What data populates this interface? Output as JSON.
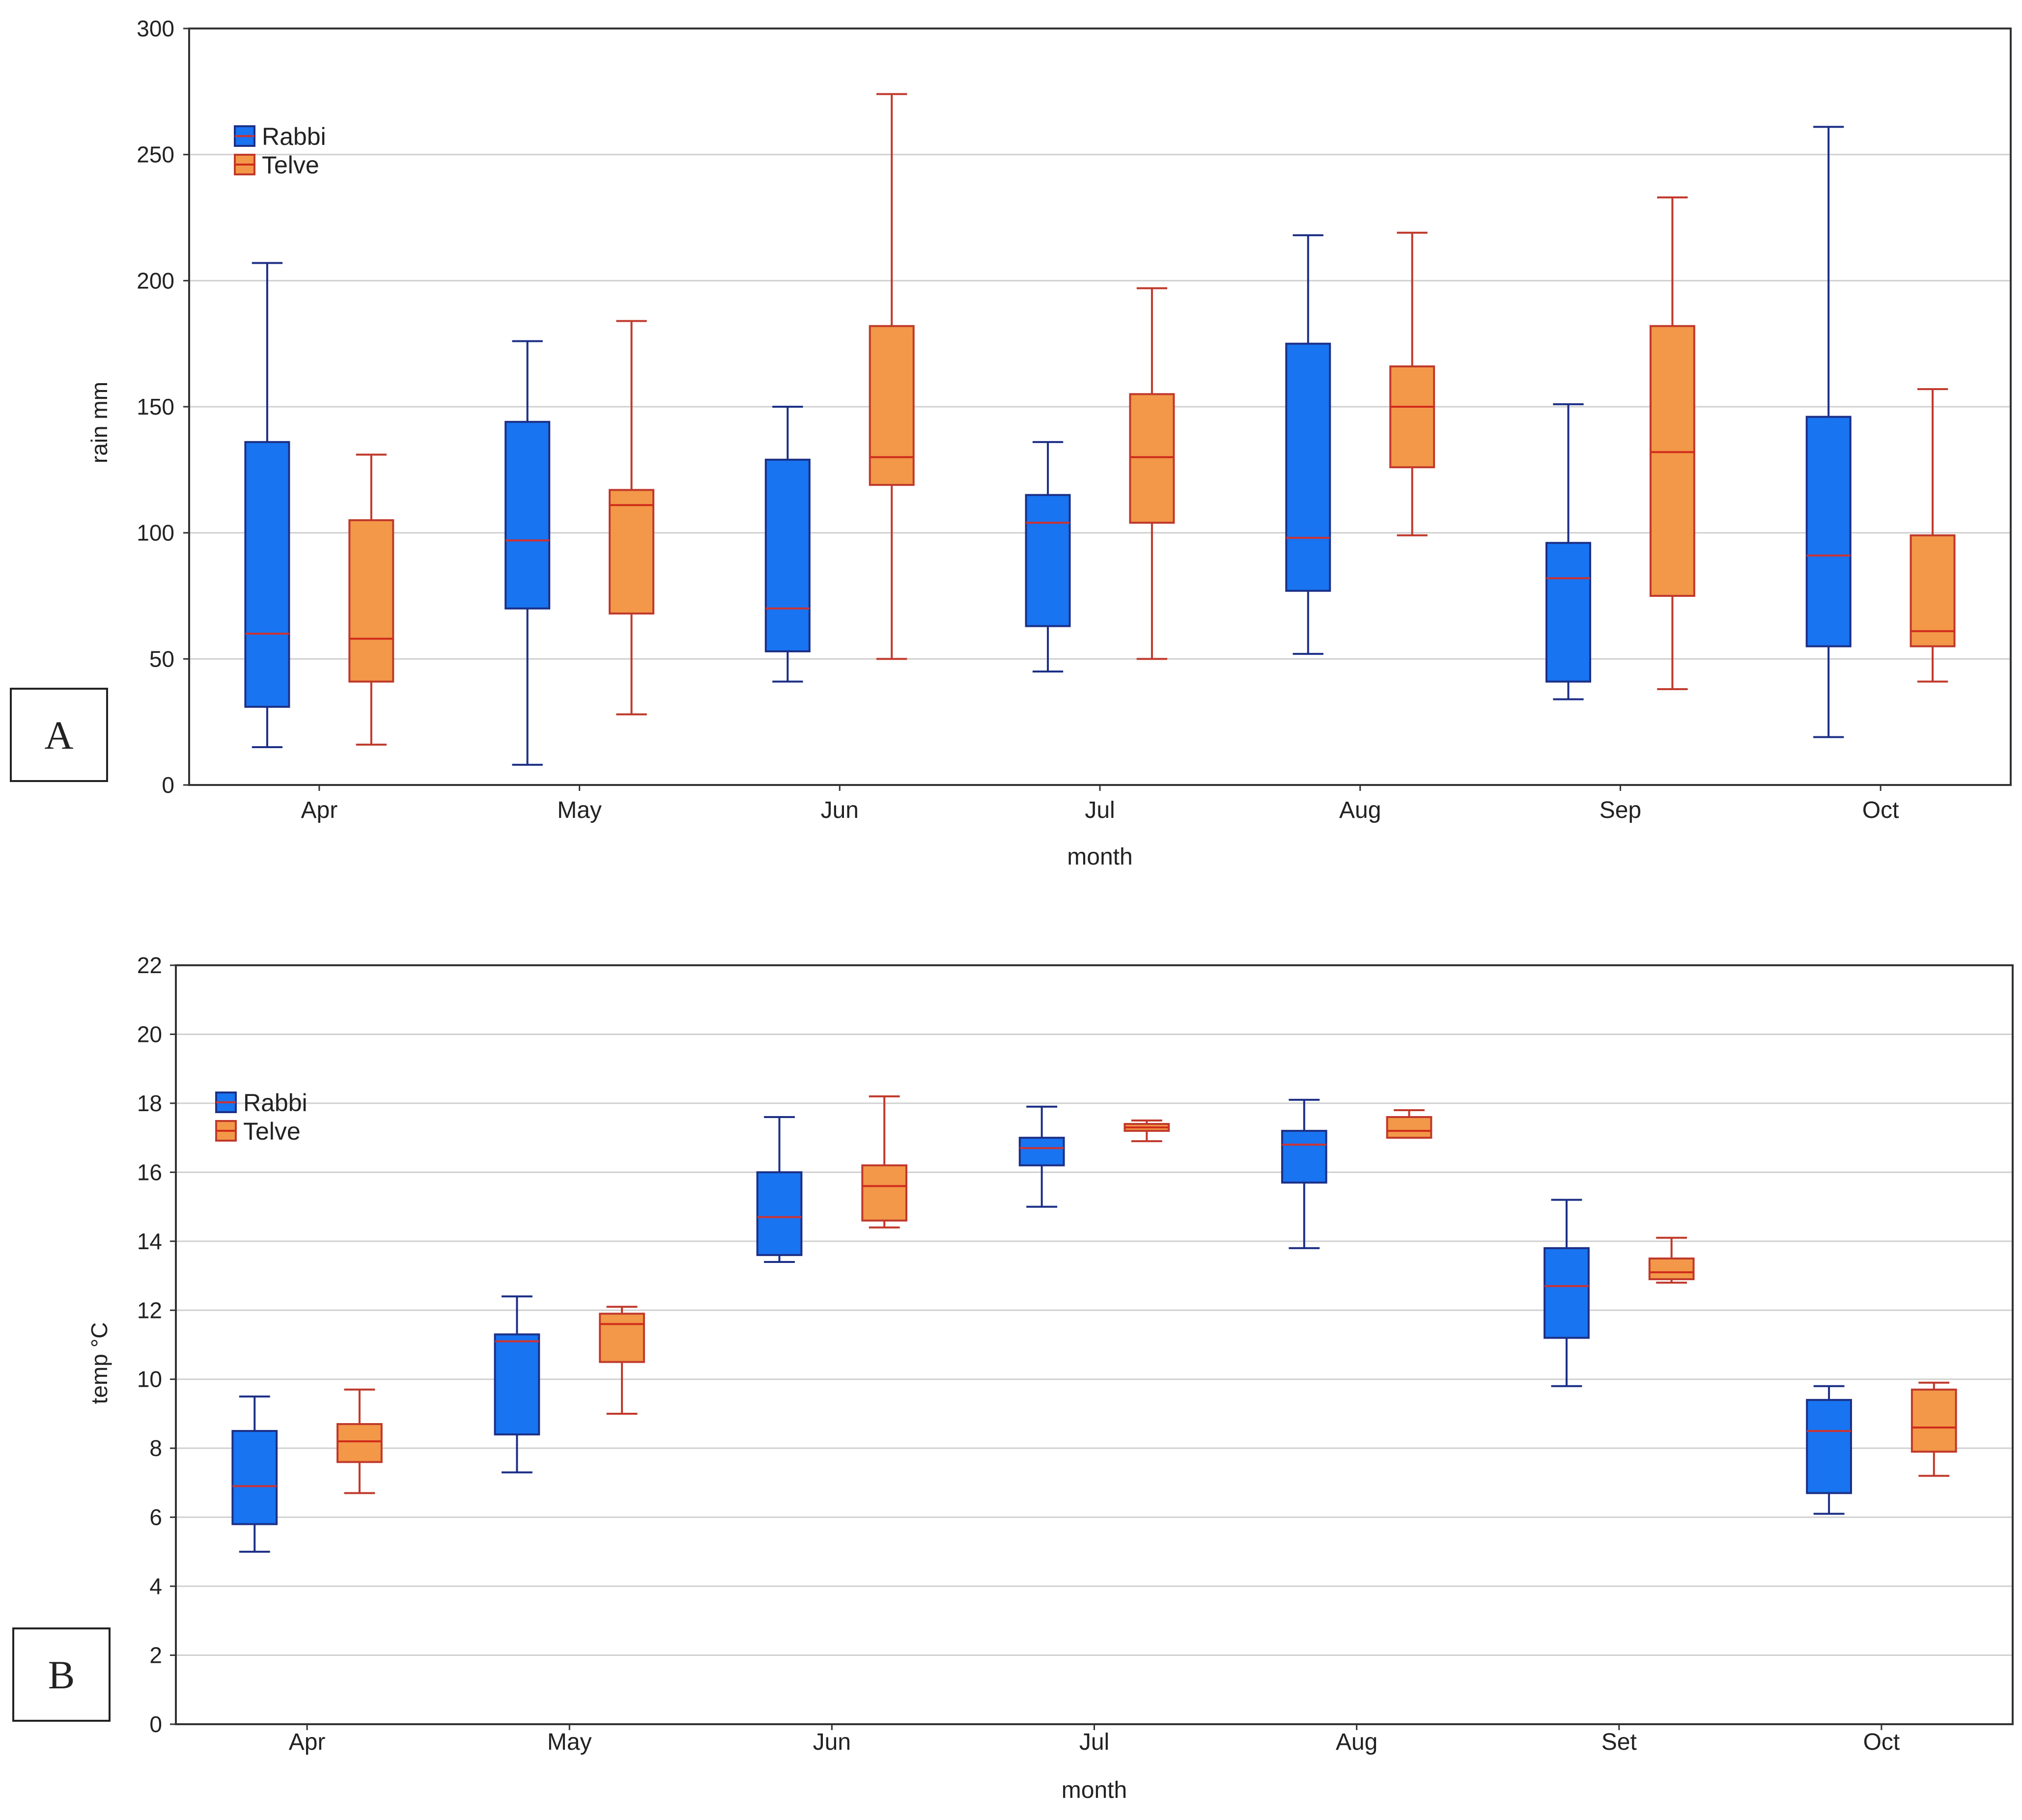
{
  "chart_data": [
    {
      "panel": "A",
      "type": "box",
      "xlabel": "month",
      "ylabel": "rain mm",
      "ylim": [
        0,
        300
      ],
      "yticks": [
        0,
        50,
        100,
        150,
        200,
        250,
        300
      ],
      "categories": [
        "Apr",
        "May",
        "Jun",
        "Jul",
        "Aug",
        "Sep",
        "Oct"
      ],
      "legend": {
        "position": "top-left",
        "entries": [
          "Rabbi",
          "Telve"
        ]
      },
      "grid": true,
      "series": [
        {
          "name": "Rabbi",
          "color": "#1874f0",
          "edge_color": "#1c2f86",
          "median_color": "#cc3333",
          "boxes": [
            {
              "min": 15,
              "q1": 31,
              "median": 60,
              "q3": 136,
              "max": 207
            },
            {
              "min": 8,
              "q1": 70,
              "median": 97,
              "q3": 144,
              "max": 176
            },
            {
              "min": 41,
              "q1": 53,
              "median": 70,
              "q3": 129,
              "max": 150
            },
            {
              "min": 45,
              "q1": 63,
              "median": 104,
              "q3": 115,
              "max": 136
            },
            {
              "min": 52,
              "q1": 77,
              "median": 98,
              "q3": 175,
              "max": 218
            },
            {
              "min": 34,
              "q1": 41,
              "median": 82,
              "q3": 96,
              "max": 151
            },
            {
              "min": 19,
              "q1": 55,
              "median": 91,
              "q3": 146,
              "max": 261
            }
          ]
        },
        {
          "name": "Telve",
          "color": "#f29848",
          "edge_color": "#c0392b",
          "median_color": "#d02c1c",
          "boxes": [
            {
              "min": 16,
              "q1": 41,
              "median": 58,
              "q3": 105,
              "max": 131
            },
            {
              "min": 28,
              "q1": 68,
              "median": 111,
              "q3": 117,
              "max": 184
            },
            {
              "min": 50,
              "q1": 119,
              "median": 130,
              "q3": 182,
              "max": 274
            },
            {
              "min": 50,
              "q1": 104,
              "median": 130,
              "q3": 155,
              "max": 197
            },
            {
              "min": 99,
              "q1": 126,
              "median": 150,
              "q3": 166,
              "max": 219
            },
            {
              "min": 38,
              "q1": 75,
              "median": 132,
              "q3": 182,
              "max": 233
            },
            {
              "min": 41,
              "q1": 55,
              "median": 61,
              "q3": 99,
              "max": 157
            }
          ]
        }
      ]
    },
    {
      "panel": "B",
      "type": "box",
      "xlabel": "month",
      "ylabel": "temp °C",
      "ylim": [
        0,
        22
      ],
      "yticks": [
        0,
        2,
        4,
        6,
        8,
        10,
        12,
        14,
        16,
        18,
        20,
        22
      ],
      "categories": [
        "Apr",
        "May",
        "Jun",
        "Jul",
        "Aug",
        "Set",
        "Oct"
      ],
      "legend": {
        "position": "top-left",
        "entries": [
          "Rabbi",
          "Telve"
        ]
      },
      "grid": true,
      "series": [
        {
          "name": "Rabbi",
          "color": "#1874f0",
          "edge_color": "#1c2f86",
          "median_color": "#cc3333",
          "boxes": [
            {
              "min": 5.0,
              "q1": 5.8,
              "median": 6.9,
              "q3": 8.5,
              "max": 9.5
            },
            {
              "min": 7.3,
              "q1": 8.4,
              "median": 11.1,
              "q3": 11.3,
              "max": 12.4
            },
            {
              "min": 13.4,
              "q1": 13.6,
              "median": 14.7,
              "q3": 16.0,
              "max": 17.6
            },
            {
              "min": 15.0,
              "q1": 16.2,
              "median": 16.7,
              "q3": 17.0,
              "max": 17.9
            },
            {
              "min": 13.8,
              "q1": 15.7,
              "median": 16.8,
              "q3": 17.2,
              "max": 18.1
            },
            {
              "min": 9.8,
              "q1": 11.2,
              "median": 12.7,
              "q3": 13.8,
              "max": 15.2
            },
            {
              "min": 6.1,
              "q1": 6.7,
              "median": 8.5,
              "q3": 9.4,
              "max": 9.8
            }
          ]
        },
        {
          "name": "Telve",
          "color": "#f29848",
          "edge_color": "#c0392b",
          "median_color": "#d02c1c",
          "boxes": [
            {
              "min": 6.7,
              "q1": 7.6,
              "median": 8.2,
              "q3": 8.7,
              "max": 9.7
            },
            {
              "min": 9.0,
              "q1": 10.5,
              "median": 11.6,
              "q3": 11.9,
              "max": 12.1
            },
            {
              "min": 14.4,
              "q1": 14.6,
              "median": 15.6,
              "q3": 16.2,
              "max": 18.2
            },
            {
              "min": 16.9,
              "q1": 17.2,
              "median": 17.3,
              "q3": 17.4,
              "max": 17.5
            },
            {
              "min": 17.0,
              "q1": 17.0,
              "median": 17.2,
              "q3": 17.6,
              "max": 17.8
            },
            {
              "min": 12.8,
              "q1": 12.9,
              "median": 13.1,
              "q3": 13.5,
              "max": 14.1
            },
            {
              "min": 7.2,
              "q1": 7.9,
              "median": 8.6,
              "q3": 9.7,
              "max": 9.9
            }
          ]
        }
      ]
    }
  ]
}
